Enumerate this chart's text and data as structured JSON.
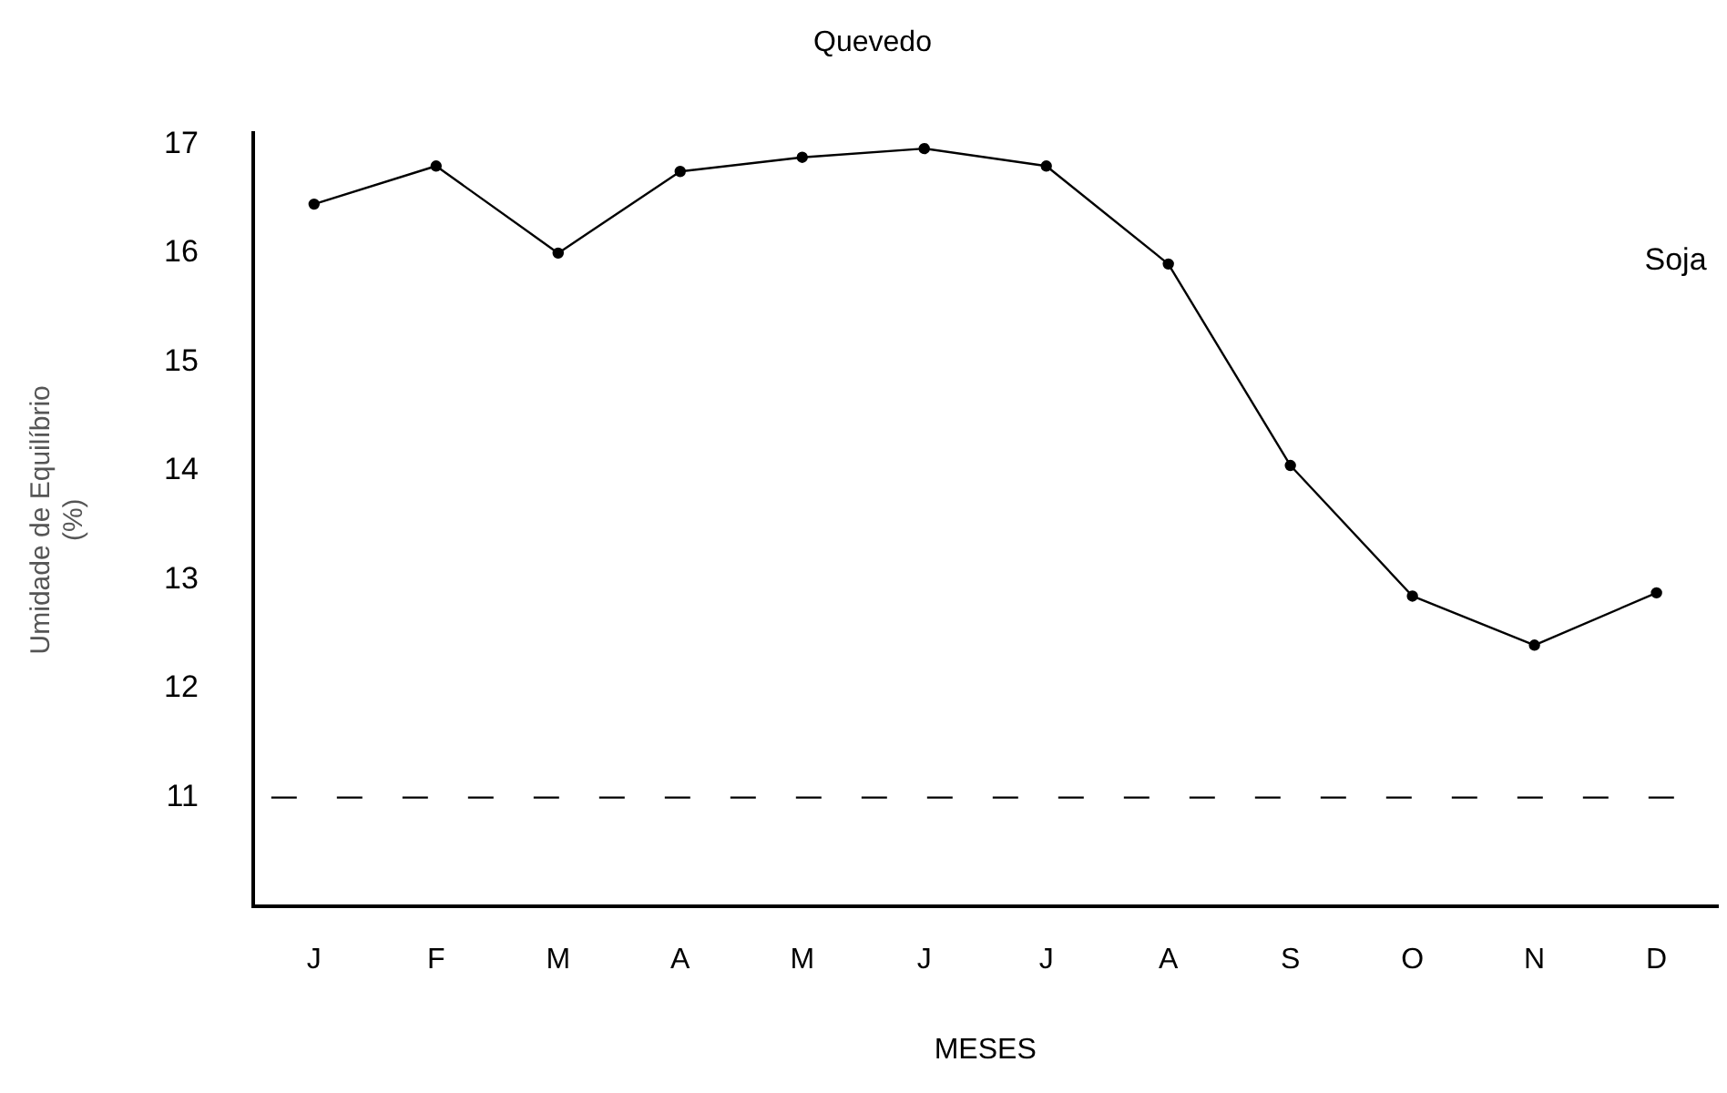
{
  "chart_data": {
    "type": "line",
    "title": "Quevedo",
    "xlabel": "MESES",
    "ylabel": "Umidade de Equilíbrio\n(%)",
    "categories": [
      "J",
      "F",
      "M",
      "A",
      "M",
      "J",
      "J",
      "A",
      "S",
      "O",
      "N",
      "D"
    ],
    "series": [
      {
        "name": "Soja",
        "color": "#000000",
        "values": [
          16.45,
          16.8,
          16.0,
          16.75,
          16.88,
          16.96,
          16.8,
          15.9,
          14.05,
          12.85,
          12.4,
          12.88
        ]
      }
    ],
    "ylim": [
      10,
      17.1
    ],
    "yticks": [
      11,
      12,
      13,
      14,
      15,
      16,
      17
    ],
    "ref_lines": [
      {
        "axis": "y",
        "value": 11,
        "color": "#000000",
        "line_style": "dashed"
      }
    ],
    "grid": false,
    "legend": false,
    "marker": "circle",
    "line_style": "solid"
  }
}
